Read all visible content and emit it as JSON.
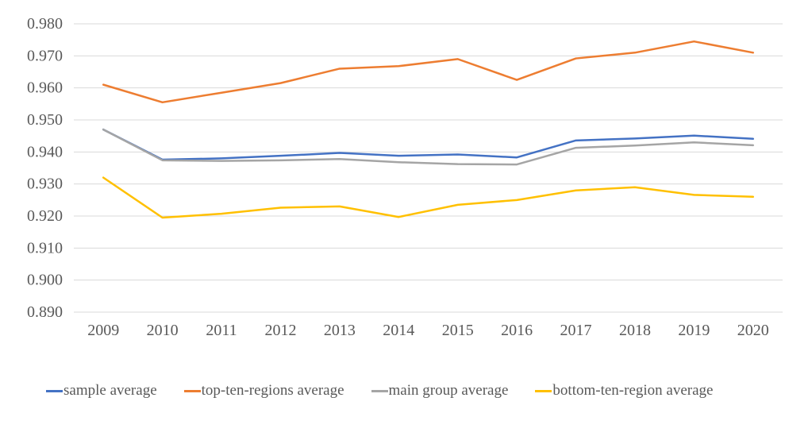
{
  "chart_data": {
    "type": "line",
    "title": "",
    "xlabel": "",
    "ylabel": "",
    "ylim": [
      0.89,
      0.98
    ],
    "ytick_step": 0.01,
    "y_tick_labels": [
      "0.890",
      "0.900",
      "0.910",
      "0.920",
      "0.930",
      "0.940",
      "0.950",
      "0.960",
      "0.970",
      "0.980"
    ],
    "grid": true,
    "legend_position": "bottom",
    "categories": [
      "2009",
      "2010",
      "2011",
      "2012",
      "2013",
      "2014",
      "2015",
      "2016",
      "2017",
      "2018",
      "2019",
      "2020"
    ],
    "series": [
      {
        "name": "sample average",
        "color": "#4472C4",
        "values": [
          0.947,
          0.9376,
          0.938,
          0.9388,
          0.9397,
          0.9388,
          0.9392,
          0.9383,
          0.9436,
          0.9442,
          0.9451,
          0.9441
        ]
      },
      {
        "name": "top-ten-regions average",
        "color": "#ED7D31",
        "values": [
          0.961,
          0.9555,
          0.9585,
          0.9615,
          0.966,
          0.9668,
          0.969,
          0.9625,
          0.9692,
          0.971,
          0.9745,
          0.971
        ]
      },
      {
        "name": "main group average",
        "color": "#A5A5A5",
        "values": [
          0.947,
          0.9374,
          0.9372,
          0.9374,
          0.9378,
          0.9368,
          0.9362,
          0.9361,
          0.9413,
          0.942,
          0.943,
          0.9421
        ]
      },
      {
        "name": "bottom-ten-region average",
        "color": "#FFC000",
        "values": [
          0.932,
          0.9195,
          0.9207,
          0.9226,
          0.923,
          0.9197,
          0.9235,
          0.925,
          0.928,
          0.929,
          0.9266,
          0.926
        ]
      }
    ],
    "colors": {
      "gridline": "#D9D9D9",
      "axis_text": "#595959",
      "background": "#FFFFFF"
    }
  }
}
